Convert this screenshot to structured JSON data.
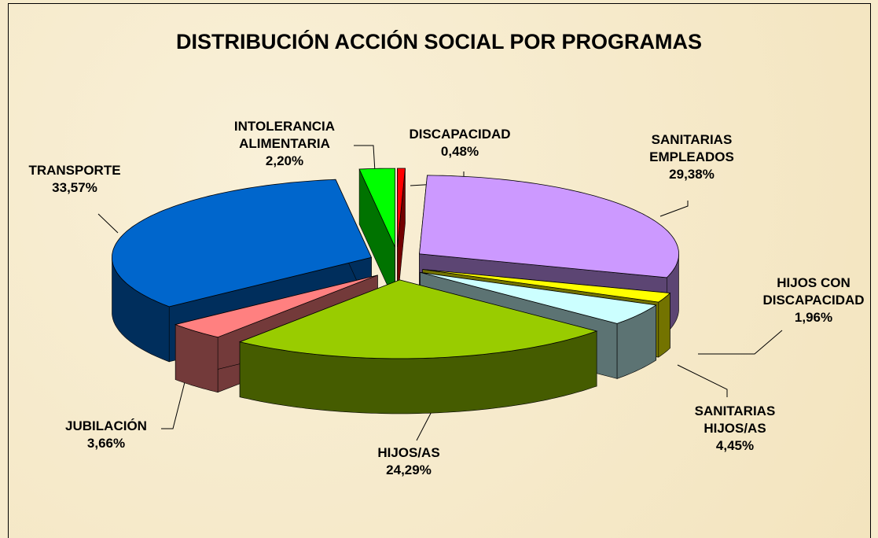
{
  "chart_data": {
    "type": "pie3d",
    "title": "DISTRIBUCIÓN ACCIÓN SOCIAL POR PROGRAMAS",
    "categories": [
      "DISCAPACIDAD",
      "SANITARIAS EMPLEADOS",
      "HIJOS CON DISCAPACIDAD",
      "SANITARIAS HIJOS/AS",
      "HIJOS/AS",
      "JUBILACIÓN",
      "TRANSPORTE",
      "INTOLERANCIA ALIMENTARIA"
    ],
    "values": [
      0.48,
      29.38,
      1.96,
      4.45,
      24.29,
      3.66,
      33.57,
      2.2
    ],
    "value_labels": [
      "0,48%",
      "29,38%",
      "1,96%",
      "4,45%",
      "24,29%",
      "3,66%",
      "33,57%",
      "2,20%"
    ],
    "colors": [
      "#ff0000",
      "#cc99ff",
      "#ffff00",
      "#ccffff",
      "#99cc00",
      "#ff8080",
      "#0066cc",
      "#00ff00"
    ]
  }
}
